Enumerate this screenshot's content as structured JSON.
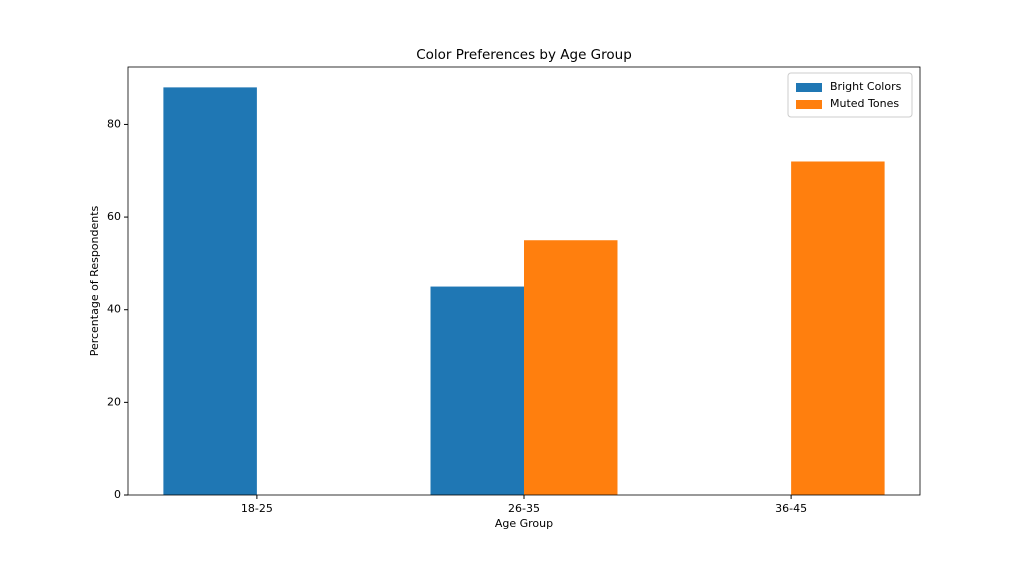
{
  "chart_data": {
    "type": "bar",
    "title": "Color Preferences by Age Group",
    "x_label": "Age Group",
    "y_label": "Percentage of Respondents",
    "categories": [
      "18-25",
      "26-35",
      "36-45"
    ],
    "series": [
      {
        "name": "Bright Colors",
        "color": "#1f77b4",
        "values": [
          88,
          45,
          0
        ]
      },
      {
        "name": "Muted Tones",
        "color": "#ff7f0e",
        "values": [
          0,
          55,
          72
        ]
      }
    ],
    "ylim": [
      0,
      92.4
    ],
    "yticks": [
      0,
      20,
      40,
      60,
      80
    ],
    "legend": "upper right"
  }
}
